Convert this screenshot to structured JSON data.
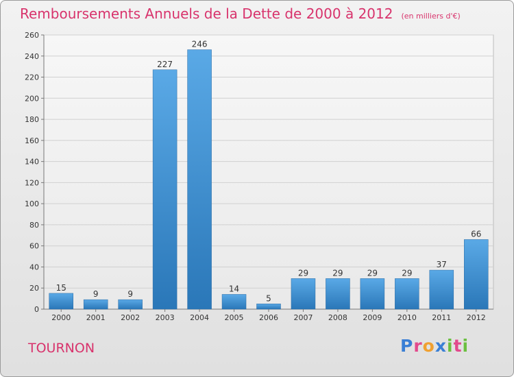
{
  "header": {
    "title": "Remboursements Annuels de la Dette de 2000 à 2012",
    "unit": "(en milliers d'€)"
  },
  "commune": "TOURNON",
  "logo": {
    "letters": [
      "P",
      "r",
      "o",
      "x",
      "i",
      "t",
      "i"
    ],
    "colors": [
      "#3a7fd5",
      "#e24a8c",
      "#f0a030",
      "#3a7fd5",
      "#6bbf3f",
      "#e24a8c",
      "#6bbf3f"
    ]
  },
  "colors": {
    "bar_top": "#5aa9e6",
    "bar_bottom": "#2a77b8",
    "text_accent": "#d8336c"
  },
  "chart_data": {
    "type": "bar",
    "title": "Remboursements Annuels de la Dette de 2000 à 2012",
    "subtitle": "(en milliers d'€)",
    "xlabel": "",
    "ylabel": "",
    "categories": [
      "2000",
      "2001",
      "2002",
      "2003",
      "2004",
      "2005",
      "2006",
      "2007",
      "2008",
      "2009",
      "2010",
      "2011",
      "2012"
    ],
    "values": [
      15,
      9,
      9,
      227,
      246,
      14,
      5,
      29,
      29,
      29,
      29,
      37,
      66
    ],
    "data_labels": [
      "15",
      "9",
      "9",
      "227",
      "246",
      "14",
      "5",
      "29",
      "29",
      "29",
      "29",
      "37",
      "66"
    ],
    "ylim": [
      0,
      260
    ],
    "yticks": [
      0,
      20,
      40,
      60,
      80,
      100,
      120,
      140,
      160,
      180,
      200,
      220,
      240,
      260
    ],
    "ytick_labels": [
      "0",
      "20",
      "40",
      "60",
      "80",
      "100",
      "120",
      "140",
      "160",
      "180",
      "200",
      "220",
      "240",
      "260"
    ],
    "grid": true
  }
}
